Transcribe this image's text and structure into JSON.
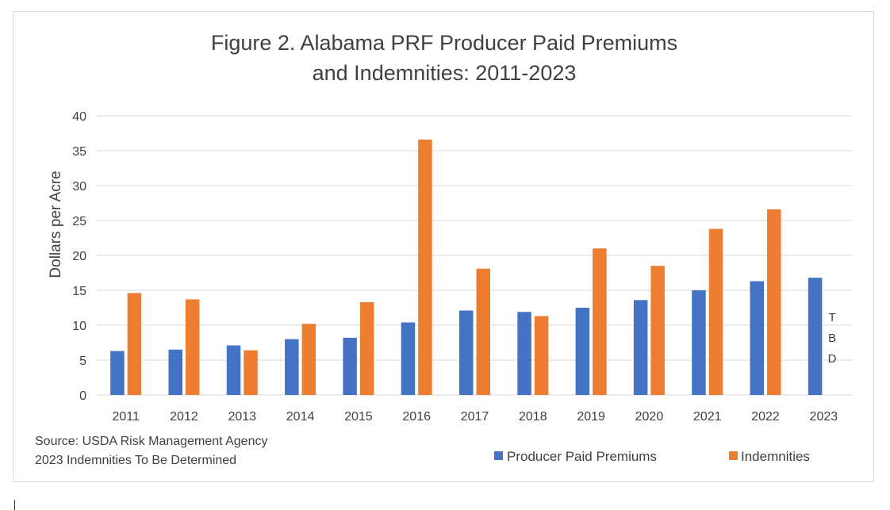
{
  "chart_data": {
    "type": "bar",
    "title_lines": [
      "Figure 2. Alabama PRF Producer Paid Premiums",
      "and Indemnities: 2011-2023"
    ],
    "categories": [
      "2011",
      "2012",
      "2013",
      "2014",
      "2015",
      "2016",
      "2017",
      "2018",
      "2019",
      "2020",
      "2021",
      "2022",
      "2023"
    ],
    "series": [
      {
        "name": "Producer Paid Premiums",
        "color": "#4472c4",
        "values": [
          6.3,
          6.5,
          7.1,
          8.0,
          8.2,
          10.4,
          12.1,
          11.9,
          12.5,
          13.6,
          15.0,
          16.3,
          16.8
        ]
      },
      {
        "name": "Indemnities",
        "color": "#ed7d31",
        "values": [
          14.6,
          13.7,
          6.4,
          10.2,
          13.3,
          36.6,
          18.1,
          11.3,
          21.0,
          18.5,
          23.8,
          26.6,
          null
        ]
      }
    ],
    "xlabel": "",
    "ylabel": "Dollars per Acre",
    "ylim": [
      0,
      40
    ],
    "yticks": [
      0,
      5,
      10,
      15,
      20,
      25,
      30,
      35,
      40
    ],
    "grid": true,
    "annotation": {
      "category": "2023",
      "letters": [
        "T",
        "B",
        "D"
      ]
    },
    "notes": [
      "Source: USDA Risk Management Agency",
      "2023 Indemnities To Be Determined"
    ],
    "legend_position": "bottom-right",
    "colors": {
      "grid": "#d9d9d9",
      "text": "#404040"
    }
  }
}
